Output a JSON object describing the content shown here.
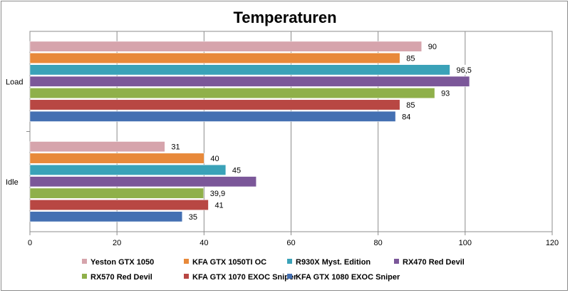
{
  "chart_data": {
    "type": "bar",
    "orientation": "horizontal",
    "title": "Temperaturen",
    "categories": [
      "Load",
      "Idle"
    ],
    "series": [
      {
        "name": "Yeston GTX 1050",
        "color": "#d6a4ac",
        "values": [
          90,
          31
        ],
        "labels": [
          "90",
          "31"
        ]
      },
      {
        "name": "KFA GTX 1050TI OC",
        "color": "#e8893a",
        "values": [
          85,
          40
        ],
        "labels": [
          "85",
          "40"
        ]
      },
      {
        "name": "R930X Myst. Edition",
        "color": "#3aa2b8",
        "values": [
          96.5,
          45
        ],
        "labels": [
          "96,5",
          "45"
        ]
      },
      {
        "name": "RX470 Red Devil",
        "color": "#7b5799",
        "values": [
          101,
          52
        ],
        "labels": [
          "",
          ""
        ]
      },
      {
        "name": "RX570 Red Devil",
        "color": "#8fb04a",
        "values": [
          93,
          39.9
        ],
        "labels": [
          "93",
          "39,9"
        ]
      },
      {
        "name": "KFA GTX 1070 EXOC Sniper",
        "color": "#b84743",
        "values": [
          85,
          41
        ],
        "labels": [
          "85",
          "41"
        ]
      },
      {
        "name": "KFA GTX 1080 EXOC Sniper",
        "color": "#4470b2",
        "values": [
          84,
          35
        ],
        "labels": [
          "84",
          "35"
        ]
      }
    ],
    "xlim": [
      0,
      120
    ],
    "xticks": [
      "0",
      "20",
      "40",
      "60",
      "80",
      "100",
      "120"
    ],
    "grid": true,
    "legend_position": "bottom"
  }
}
